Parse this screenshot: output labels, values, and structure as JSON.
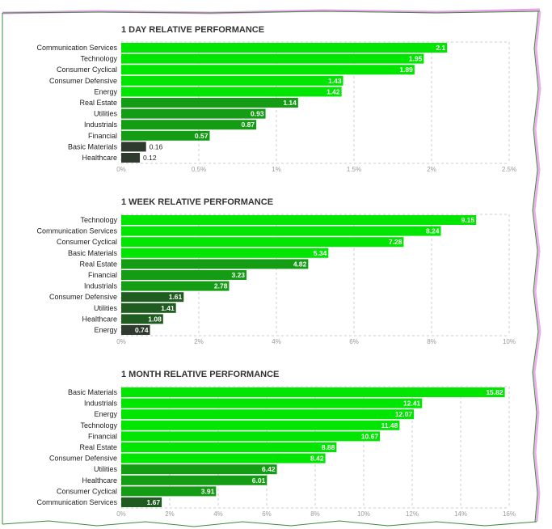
{
  "colors": {
    "bright": "#00e600",
    "mid": "#149c14",
    "dark": "#1f5c1f",
    "darkest": "#2d3a2d",
    "grid": "#cccccc",
    "border_green": "#3c8a3c",
    "border_pink": "#e07ae0"
  },
  "chart_data": [
    {
      "type": "bar",
      "orientation": "horizontal",
      "title": "1 DAY RELATIVE PERFORMANCE",
      "categories": [
        "Communication Services",
        "Technology",
        "Consumer Cyclical",
        "Consumer Defensive",
        "Energy",
        "Real Estate",
        "Utilities",
        "Industrials",
        "Financial",
        "Basic Materials",
        "Healthcare"
      ],
      "values": [
        2.1,
        1.95,
        1.89,
        1.43,
        1.42,
        1.14,
        0.93,
        0.87,
        0.57,
        0.16,
        0.12
      ],
      "value_labels": [
        "2.1",
        "1.95",
        "1.89",
        "1.43",
        "1.42",
        "1.14",
        "0.93",
        "0.87",
        "0.57",
        "0.16",
        "0.12"
      ],
      "xlim": [
        0,
        2.5
      ],
      "xticks": [
        "0%",
        "0.5%",
        "1%",
        "1.5%",
        "2%",
        "2.5%"
      ],
      "xlabel": "",
      "ylabel": ""
    },
    {
      "type": "bar",
      "orientation": "horizontal",
      "title": "1 WEEK RELATIVE PERFORMANCE",
      "categories": [
        "Technology",
        "Communication Services",
        "Consumer Cyclical",
        "Basic Materials",
        "Real Estate",
        "Financial",
        "Industrials",
        "Consumer Defensive",
        "Utilities",
        "Healthcare",
        "Energy"
      ],
      "values": [
        9.15,
        8.24,
        7.28,
        5.34,
        4.82,
        3.23,
        2.78,
        1.61,
        1.41,
        1.08,
        0.74
      ],
      "value_labels": [
        "9.15",
        "8.24",
        "7.28",
        "5.34",
        "4.82",
        "3.23",
        "2.78",
        "1.61",
        "1.41",
        "1.08",
        "0.74"
      ],
      "xlim": [
        0,
        10
      ],
      "xticks": [
        "0%",
        "2%",
        "4%",
        "6%",
        "8%",
        "10%"
      ],
      "xlabel": "",
      "ylabel": ""
    },
    {
      "type": "bar",
      "orientation": "horizontal",
      "title": "1 MONTH RELATIVE PERFORMANCE",
      "categories": [
        "Basic Materials",
        "Industrials",
        "Energy",
        "Technology",
        "Financial",
        "Real Estate",
        "Consumer Defensive",
        "Utilities",
        "Healthcare",
        "Consumer Cyclical",
        "Communication Services"
      ],
      "values": [
        15.82,
        12.41,
        12.07,
        11.48,
        10.67,
        8.88,
        8.42,
        6.42,
        6.01,
        3.91,
        1.67
      ],
      "value_labels": [
        "15.82",
        "12.41",
        "12.07",
        "11.48",
        "10.67",
        "8.88",
        "8.42",
        "6.42",
        "6.01",
        "3.91",
        "1.67"
      ],
      "xlim": [
        0,
        16
      ],
      "xticks": [
        "0%",
        "2%",
        "4%",
        "6%",
        "8%",
        "10%",
        "12%",
        "14%",
        "16%"
      ],
      "xlabel": "",
      "ylabel": ""
    }
  ]
}
